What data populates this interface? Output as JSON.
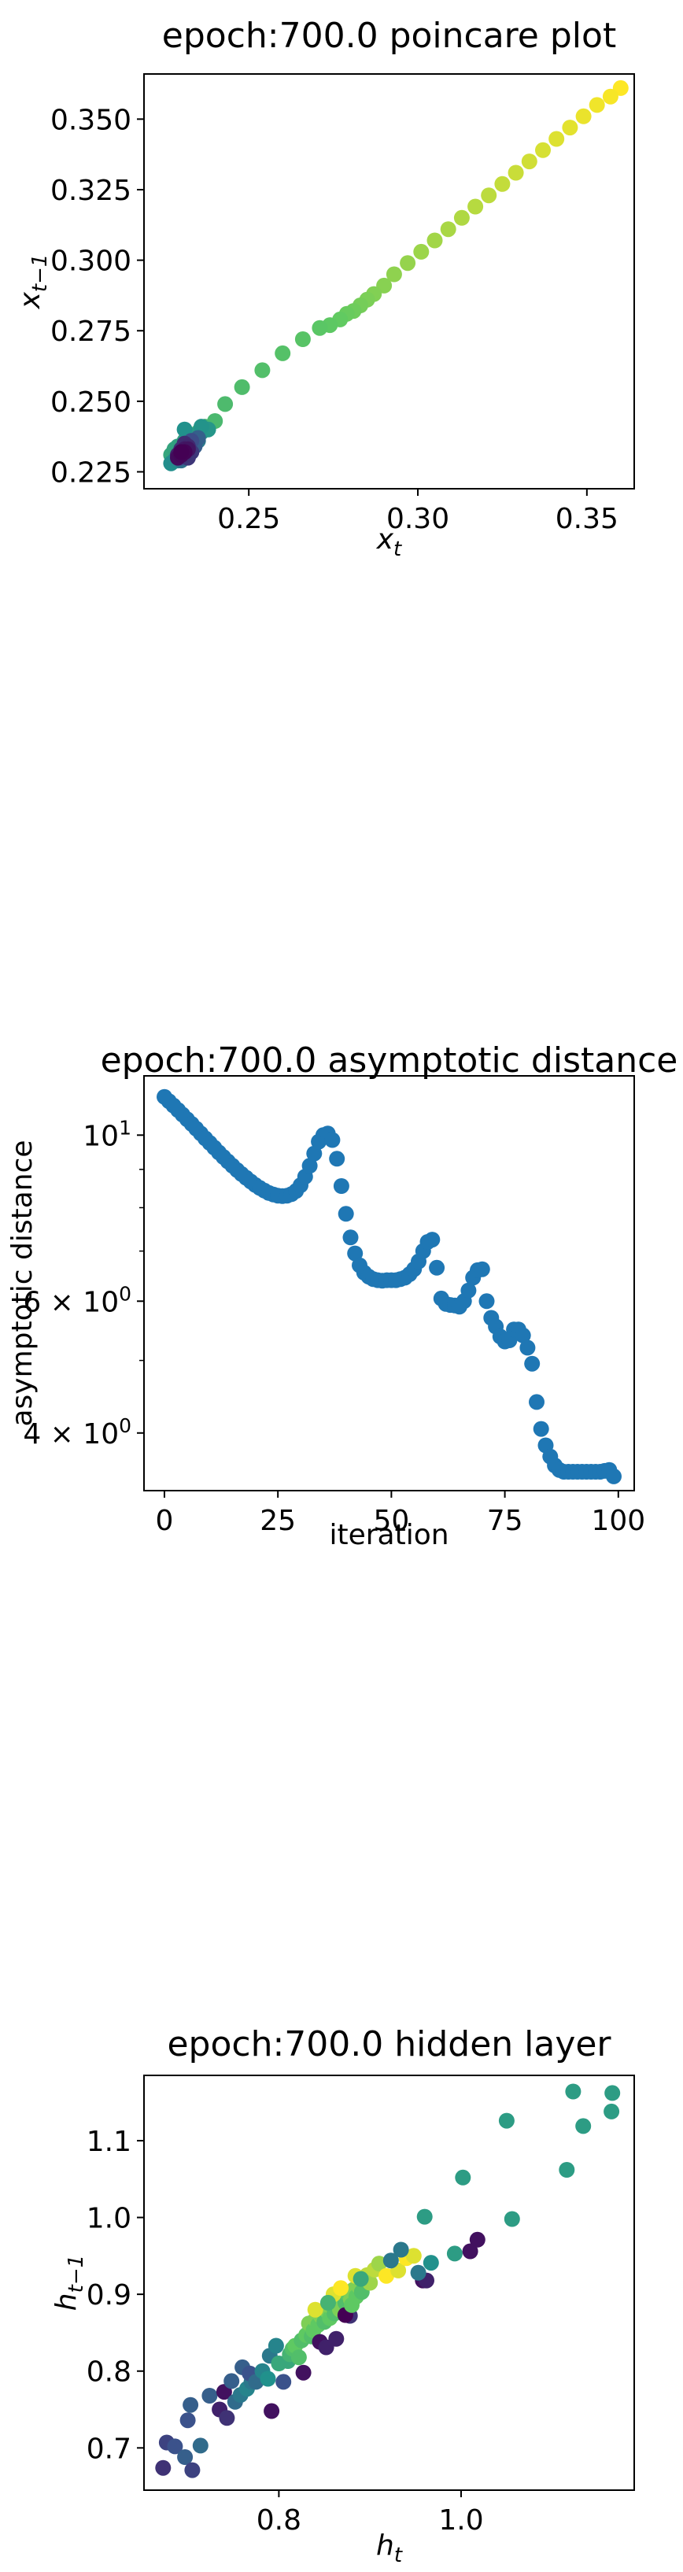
{
  "chart_data": [
    {
      "type": "scatter",
      "title": "epoch:700.0 poincare plot",
      "xlabel": "x_t",
      "ylabel": "x_{t-1}",
      "xlim": [
        0.219,
        0.364
      ],
      "ylim": [
        0.219,
        0.366
      ],
      "xticks": [
        0.25,
        0.3,
        0.35
      ],
      "xtick_labels": [
        "0.25",
        "0.30",
        "0.35"
      ],
      "yticks": [
        0.225,
        0.25,
        0.275,
        0.3,
        0.325,
        0.35
      ],
      "ytick_labels": [
        "0.225",
        "0.250",
        "0.275",
        "0.300",
        "0.325",
        "0.350"
      ],
      "colormap": "viridis (point color by iteration)",
      "points": [
        [
          0.36,
          0.361
        ],
        [
          0.357,
          0.358
        ],
        [
          0.353,
          0.355
        ],
        [
          0.349,
          0.351
        ],
        [
          0.345,
          0.347
        ],
        [
          0.341,
          0.343
        ],
        [
          0.337,
          0.339
        ],
        [
          0.333,
          0.335
        ],
        [
          0.329,
          0.331
        ],
        [
          0.325,
          0.327
        ],
        [
          0.321,
          0.323
        ],
        [
          0.317,
          0.319
        ],
        [
          0.313,
          0.315
        ],
        [
          0.309,
          0.311
        ],
        [
          0.305,
          0.307
        ],
        [
          0.301,
          0.303
        ],
        [
          0.297,
          0.299
        ],
        [
          0.293,
          0.295
        ],
        [
          0.29,
          0.291
        ],
        [
          0.287,
          0.288
        ],
        [
          0.285,
          0.286
        ],
        [
          0.283,
          0.284
        ],
        [
          0.281,
          0.282
        ],
        [
          0.279,
          0.281
        ],
        [
          0.277,
          0.279
        ],
        [
          0.274,
          0.277
        ],
        [
          0.271,
          0.276
        ],
        [
          0.266,
          0.272
        ],
        [
          0.26,
          0.267
        ],
        [
          0.254,
          0.261
        ],
        [
          0.248,
          0.255
        ],
        [
          0.243,
          0.249
        ],
        [
          0.24,
          0.243
        ],
        [
          0.237,
          0.241
        ],
        [
          0.235,
          0.239
        ],
        [
          0.233,
          0.237
        ],
        [
          0.231,
          0.235
        ],
        [
          0.23,
          0.233
        ],
        [
          0.229,
          0.232
        ],
        [
          0.228,
          0.231
        ],
        [
          0.227,
          0.231
        ],
        [
          0.228,
          0.233
        ],
        [
          0.229,
          0.234
        ],
        [
          0.231,
          0.236
        ],
        [
          0.232,
          0.237
        ],
        [
          0.234,
          0.238
        ],
        [
          0.236,
          0.239
        ],
        [
          0.238,
          0.24
        ],
        [
          0.236,
          0.241
        ],
        [
          0.231,
          0.24
        ],
        [
          0.227,
          0.228
        ],
        [
          0.228,
          0.229
        ],
        [
          0.229,
          0.229
        ],
        [
          0.23,
          0.231
        ],
        [
          0.231,
          0.232
        ],
        [
          0.232,
          0.233
        ],
        [
          0.233,
          0.234
        ],
        [
          0.234,
          0.235
        ],
        [
          0.235,
          0.236
        ],
        [
          0.233,
          0.233
        ],
        [
          0.232,
          0.231
        ],
        [
          0.231,
          0.23
        ],
        [
          0.23,
          0.229
        ],
        [
          0.229,
          0.23
        ],
        [
          0.23,
          0.232
        ],
        [
          0.232,
          0.234
        ],
        [
          0.233,
          0.235
        ],
        [
          0.234,
          0.236
        ],
        [
          0.235,
          0.237
        ],
        [
          0.234,
          0.234
        ],
        [
          0.233,
          0.232
        ],
        [
          0.231,
          0.231
        ],
        [
          0.23,
          0.23
        ],
        [
          0.231,
          0.233
        ],
        [
          0.232,
          0.235
        ],
        [
          0.233,
          0.236
        ],
        [
          0.232,
          0.233
        ],
        [
          0.231,
          0.232
        ],
        [
          0.23,
          0.231
        ],
        [
          0.231,
          0.234
        ],
        [
          0.232,
          0.233
        ],
        [
          0.233,
          0.232
        ],
        [
          0.232,
          0.23
        ],
        [
          0.231,
          0.231
        ],
        [
          0.23,
          0.233
        ],
        [
          0.231,
          0.235
        ],
        [
          0.232,
          0.234
        ],
        [
          0.231,
          0.232
        ],
        [
          0.23,
          0.232
        ],
        [
          0.229,
          0.231
        ],
        [
          0.23,
          0.232
        ],
        [
          0.231,
          0.233
        ],
        [
          0.232,
          0.233
        ],
        [
          0.231,
          0.232
        ],
        [
          0.23,
          0.231
        ],
        [
          0.229,
          0.23
        ],
        [
          0.23,
          0.231
        ],
        [
          0.231,
          0.232
        ],
        [
          0.23,
          0.232
        ]
      ]
    },
    {
      "type": "scatter",
      "title": "epoch:700.0 asymptotic distance",
      "xlabel": "iteration",
      "ylabel": "asymptotic distance",
      "yscale": "log",
      "xlim": [
        -4.5,
        103.5
      ],
      "ylim": [
        3.35,
        12.0
      ],
      "xticks": [
        0,
        25,
        50,
        75,
        100
      ],
      "xtick_labels": [
        "0",
        "25",
        "50",
        "75",
        "100"
      ],
      "yticks": [
        10,
        6,
        4
      ],
      "ytick_labels": [
        "10^1",
        "6 × 10^0",
        "4 × 10^0"
      ],
      "color": "#1f77b4",
      "x": [
        0,
        1,
        2,
        3,
        4,
        5,
        6,
        7,
        8,
        9,
        10,
        11,
        12,
        13,
        14,
        15,
        16,
        17,
        18,
        19,
        20,
        21,
        22,
        23,
        24,
        25,
        26,
        27,
        28,
        29,
        30,
        31,
        32,
        33,
        34,
        35,
        36,
        37,
        38,
        39,
        40,
        41,
        42,
        43,
        44,
        45,
        46,
        47,
        48,
        49,
        50,
        51,
        52,
        53,
        54,
        55,
        56,
        57,
        58,
        59,
        60,
        61,
        62,
        63,
        64,
        65,
        66,
        67,
        68,
        69,
        70,
        71,
        72,
        73,
        74,
        75,
        76,
        77,
        78,
        79,
        80,
        81,
        82,
        83,
        84,
        85,
        86,
        87,
        88,
        89,
        90,
        91,
        92,
        93,
        94,
        95,
        96,
        97,
        98,
        99
      ],
      "y": [
        11.25,
        11.1,
        10.95,
        10.8,
        10.65,
        10.5,
        10.35,
        10.2,
        10.05,
        9.9,
        9.76,
        9.62,
        9.48,
        9.35,
        9.22,
        9.1,
        8.98,
        8.87,
        8.77,
        8.67,
        8.58,
        8.5,
        8.43,
        8.37,
        8.33,
        8.3,
        8.29,
        8.3,
        8.34,
        8.42,
        8.57,
        8.8,
        9.1,
        9.45,
        9.8,
        10.0,
        10.05,
        9.85,
        9.3,
        8.55,
        7.85,
        7.3,
        6.95,
        6.7,
        6.55,
        6.47,
        6.42,
        6.4,
        6.39,
        6.4,
        6.4,
        6.4,
        6.42,
        6.45,
        6.52,
        6.62,
        6.78,
        7.0,
        7.2,
        7.25,
        6.65,
        6.05,
        5.95,
        5.93,
        5.92,
        5.9,
        6.0,
        6.2,
        6.45,
        6.6,
        6.62,
        6.0,
        5.7,
        5.55,
        5.38,
        5.3,
        5.32,
        5.5,
        5.5,
        5.4,
        5.2,
        4.95,
        4.4,
        4.05,
        3.85,
        3.72,
        3.62,
        3.57,
        3.55,
        3.55,
        3.55,
        3.55,
        3.55,
        3.55,
        3.55,
        3.55,
        3.55,
        3.56,
        3.57,
        3.5
      ]
    },
    {
      "type": "scatter",
      "title": "epoch:700.0 hidden layer",
      "xlabel": "h_t",
      "ylabel": "h_{t-1}",
      "xlim": [
        0.652,
        1.19
      ],
      "ylim": [
        0.645,
        1.185
      ],
      "xticks": [
        0.8,
        1.0
      ],
      "xtick_labels": [
        "0.8",
        "1.0"
      ],
      "yticks": [
        0.7,
        0.8,
        0.9,
        1.0,
        1.1
      ],
      "ytick_labels": [
        "0.7",
        "0.8",
        "0.9",
        "1.0",
        "1.1"
      ],
      "colormap": "viridis (point color by iteration)",
      "points": [
        [
          0.673,
          0.674,
          0.15
        ],
        [
          0.677,
          0.707,
          0.2
        ],
        [
          0.686,
          0.702,
          0.25
        ],
        [
          0.697,
          0.688,
          0.3
        ],
        [
          0.705,
          0.671,
          0.2
        ],
        [
          0.7,
          0.736,
          0.25
        ],
        [
          0.703,
          0.756,
          0.3
        ],
        [
          0.714,
          0.703,
          0.35
        ],
        [
          0.724,
          0.768,
          0.3
        ],
        [
          0.735,
          0.75,
          0.1
        ],
        [
          0.74,
          0.773,
          0.05
        ],
        [
          0.743,
          0.739,
          0.15
        ],
        [
          0.752,
          0.76,
          0.35
        ],
        [
          0.758,
          0.769,
          0.4
        ],
        [
          0.76,
          0.805,
          0.3
        ],
        [
          0.765,
          0.777,
          0.45
        ],
        [
          0.77,
          0.786,
          0.4
        ],
        [
          0.748,
          0.787,
          0.3
        ],
        [
          0.768,
          0.797,
          0.25
        ],
        [
          0.775,
          0.786,
          0.35
        ],
        [
          0.782,
          0.8,
          0.45
        ],
        [
          0.788,
          0.79,
          0.5
        ],
        [
          0.79,
          0.82,
          0.4
        ],
        [
          0.792,
          0.748,
          0.05
        ],
        [
          0.797,
          0.833,
          0.45
        ],
        [
          0.8,
          0.81,
          0.6
        ],
        [
          0.805,
          0.786,
          0.25
        ],
        [
          0.81,
          0.813,
          0.6
        ],
        [
          0.812,
          0.822,
          0.65
        ],
        [
          0.815,
          0.829,
          0.7
        ],
        [
          0.818,
          0.833,
          0.75
        ],
        [
          0.822,
          0.818,
          0.7
        ],
        [
          0.825,
          0.84,
          0.7
        ],
        [
          0.827,
          0.798,
          0.05
        ],
        [
          0.83,
          0.847,
          0.75
        ],
        [
          0.833,
          0.862,
          0.8
        ],
        [
          0.836,
          0.845,
          0.7
        ],
        [
          0.838,
          0.853,
          0.75
        ],
        [
          0.84,
          0.867,
          0.8
        ],
        [
          0.843,
          0.86,
          0.75
        ],
        [
          0.846,
          0.872,
          0.8
        ],
        [
          0.85,
          0.864,
          0.7
        ],
        [
          0.853,
          0.878,
          0.8
        ],
        [
          0.856,
          0.869,
          0.75
        ],
        [
          0.858,
          0.883,
          0.8
        ],
        [
          0.861,
          0.875,
          0.7
        ],
        [
          0.864,
          0.889,
          0.75
        ],
        [
          0.867,
          0.88,
          0.8
        ],
        [
          0.87,
          0.895,
          0.8
        ],
        [
          0.873,
          0.889,
          0.7
        ],
        [
          0.876,
          0.9,
          0.75
        ],
        [
          0.879,
          0.893,
          0.8
        ],
        [
          0.882,
          0.906,
          0.8
        ],
        [
          0.885,
          0.897,
          0.75
        ],
        [
          0.888,
          0.91,
          0.8
        ],
        [
          0.891,
          0.903,
          0.7
        ],
        [
          0.845,
          0.838,
          0.05
        ],
        [
          0.863,
          0.842,
          0.1
        ],
        [
          0.852,
          0.831,
          0.1
        ],
        [
          0.878,
          0.872,
          0.15
        ],
        [
          0.84,
          0.88,
          0.95
        ],
        [
          0.86,
          0.9,
          0.95
        ],
        [
          0.868,
          0.908,
          1.0
        ],
        [
          0.884,
          0.924,
          0.95
        ],
        [
          0.897,
          0.925,
          0.9
        ],
        [
          0.9,
          0.915,
          0.85
        ],
        [
          0.905,
          0.932,
          0.9
        ],
        [
          0.91,
          0.94,
          0.85
        ],
        [
          0.918,
          0.924,
          1.0
        ],
        [
          0.931,
          0.931,
          0.95
        ],
        [
          0.94,
          0.947,
          1.0
        ],
        [
          0.948,
          0.95,
          0.95
        ],
        [
          0.934,
          0.958,
          0.4
        ],
        [
          0.958,
          0.918,
          0.05
        ],
        [
          0.962,
          0.918,
          0.1
        ],
        [
          0.953,
          0.928,
          0.4
        ],
        [
          0.967,
          0.941,
          0.5
        ],
        [
          0.993,
          0.953,
          0.55
        ],
        [
          1.01,
          0.956,
          0.05
        ],
        [
          1.018,
          0.971,
          0.05
        ],
        [
          0.96,
          1.001,
          0.55
        ],
        [
          1.002,
          1.052,
          0.55
        ],
        [
          1.056,
          0.998,
          0.55
        ],
        [
          1.05,
          1.126,
          0.55
        ],
        [
          1.116,
          1.062,
          0.55
        ],
        [
          1.123,
          1.164,
          0.55
        ],
        [
          1.134,
          1.119,
          0.55
        ],
        [
          1.166,
          1.162,
          0.55
        ],
        [
          1.165,
          1.138,
          0.55
        ],
        [
          0.873,
          0.873,
          0.0
        ],
        [
          0.88,
          0.886,
          0.75
        ],
        [
          0.89,
          0.92,
          0.6
        ],
        [
          0.854,
          0.889,
          0.65
        ],
        [
          0.923,
          0.944,
          0.4
        ]
      ]
    }
  ]
}
